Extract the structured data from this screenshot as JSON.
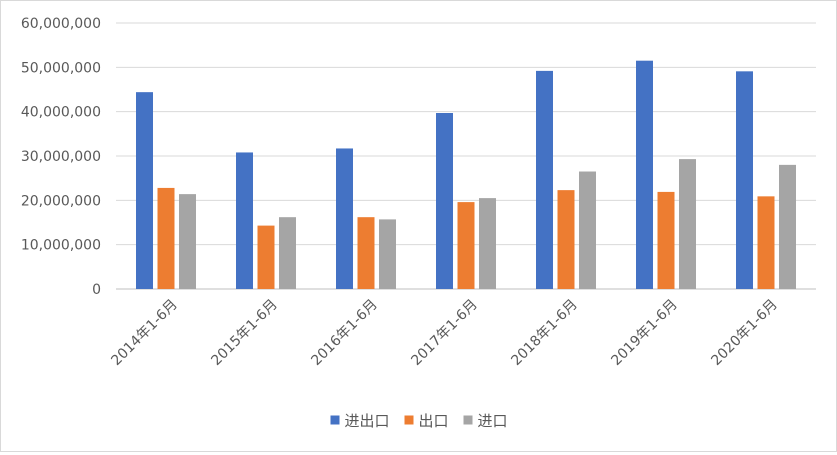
{
  "chart_data": {
    "type": "bar",
    "title": "",
    "xlabel": "",
    "ylabel": "",
    "categories": [
      "2014年1-6月",
      "2015年1-6月",
      "2016年1-6月",
      "2017年1-6月",
      "2018年1-6月",
      "2019年1-6月",
      "2020年1-6月"
    ],
    "series": [
      {
        "name": "进出口",
        "color": "#4472C4",
        "values": [
          44400000,
          30800000,
          31700000,
          39700000,
          49200000,
          51500000,
          49100000
        ]
      },
      {
        "name": "出口",
        "color": "#ED7D31",
        "values": [
          22800000,
          14300000,
          16200000,
          19600000,
          22300000,
          21900000,
          20900000
        ]
      },
      {
        "name": "进口",
        "color": "#A5A5A5",
        "values": [
          21400000,
          16200000,
          15700000,
          20500000,
          26500000,
          29300000,
          28000000
        ]
      }
    ],
    "ylim": [
      0,
      60000000
    ],
    "yticks": [
      "0",
      "10,000,000",
      "20,000,000",
      "30,000,000",
      "40,000,000",
      "50,000,000",
      "60,000,000"
    ],
    "grid": true,
    "legend": "bottom"
  }
}
